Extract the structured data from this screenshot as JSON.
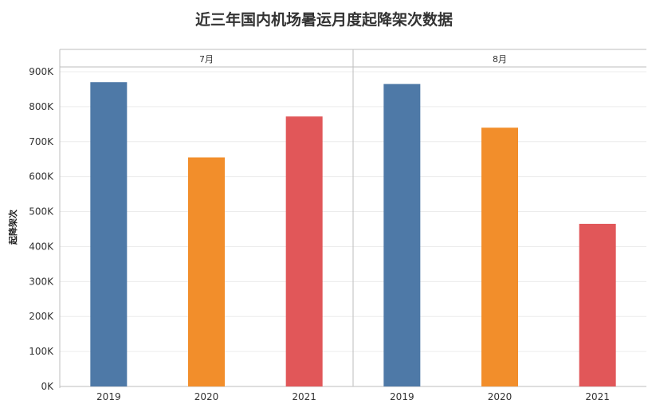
{
  "chart_data": {
    "type": "bar",
    "title": "近三年国内机场暑运月度起降架次数据",
    "ylabel": "起降架次",
    "ylim": [
      0,
      900000
    ],
    "yticks": [
      0,
      100000,
      200000,
      300000,
      400000,
      500000,
      600000,
      700000,
      800000,
      900000
    ],
    "ytick_labels": [
      "0K",
      "100K",
      "200K",
      "300K",
      "400K",
      "500K",
      "600K",
      "700K",
      "800K",
      "900K"
    ],
    "grid": true,
    "panels": [
      {
        "label": "7月",
        "categories": [
          "2019",
          "2020",
          "2021"
        ],
        "values": [
          870000,
          655000,
          772000
        ]
      },
      {
        "label": "8月",
        "categories": [
          "2019",
          "2020",
          "2021"
        ],
        "values": [
          865000,
          740000,
          465000
        ]
      }
    ],
    "colors": {
      "2019": "#4e79a7",
      "2020": "#f28e2b",
      "2021": "#e15759"
    }
  }
}
